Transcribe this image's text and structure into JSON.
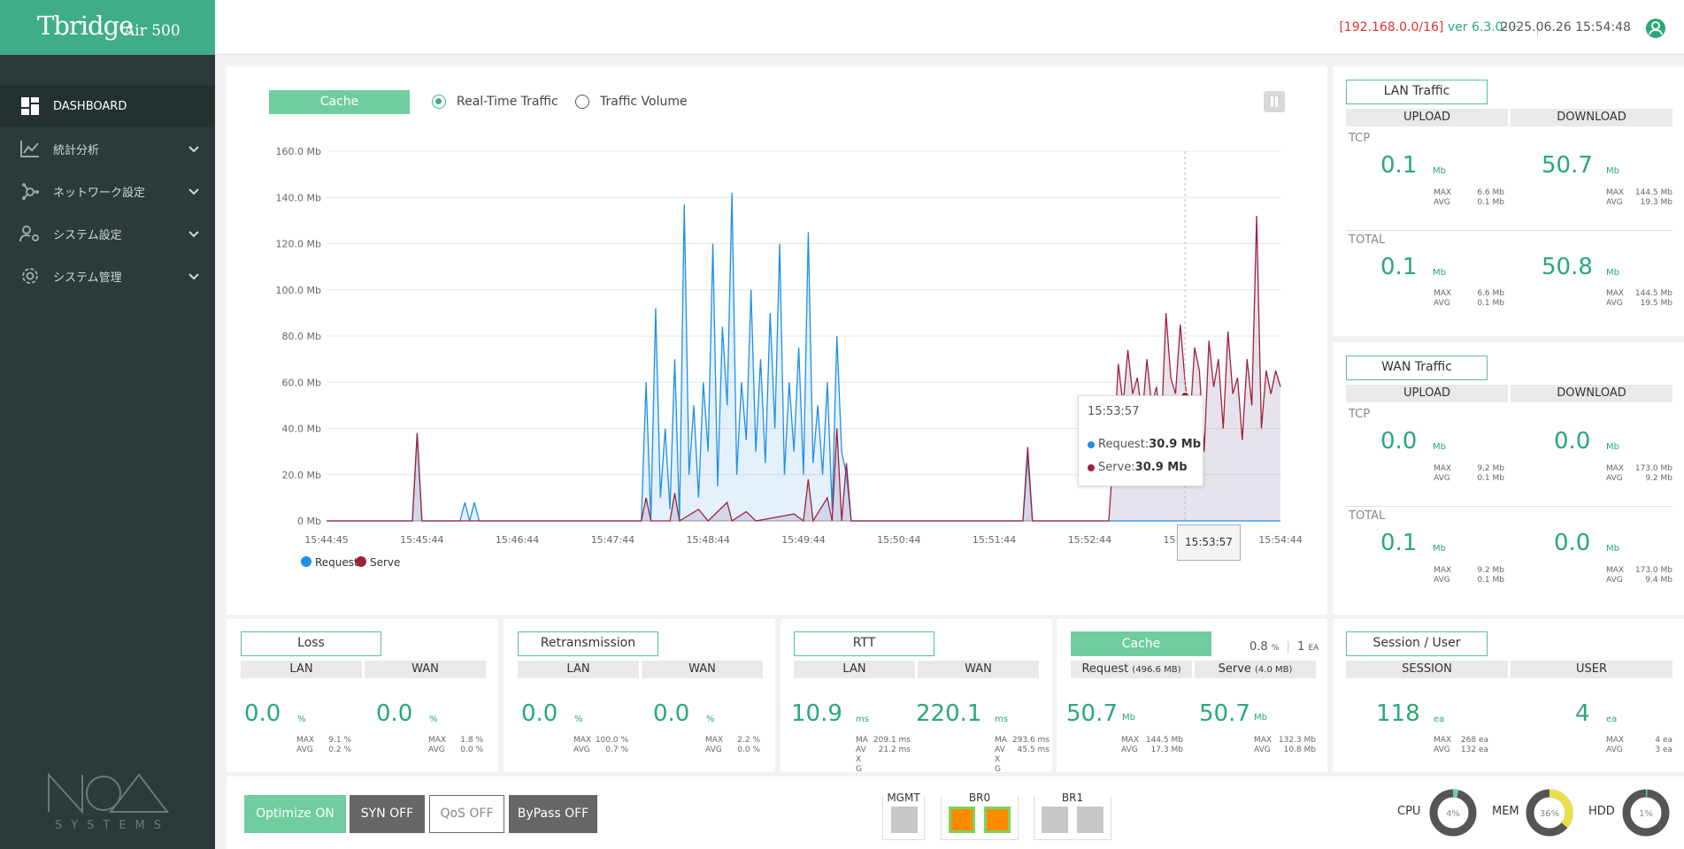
{
  "app": {
    "logo_main": "Tbridge",
    "logo_sub": "Air 500",
    "brand_sub": "SYSTEMS"
  },
  "topbar": {
    "ip": "[192.168.0.0/16]",
    "version": "ver 6.3.0-···",
    "datetime": "2025.06.26 15:54:48"
  },
  "sidebar": {
    "items": [
      {
        "label": "DASHBOARD",
        "icon": "dashboard-icon",
        "active": true
      },
      {
        "label": "統計分析",
        "icon": "chart-icon"
      },
      {
        "label": "ネットワーク設定",
        "icon": "network-icon"
      },
      {
        "label": "システム設定",
        "icon": "user-gear-icon"
      },
      {
        "label": "システム管理",
        "icon": "gear-icon"
      }
    ]
  },
  "traffic": {
    "cache_btn": "Cache",
    "radio_realtime": "Real-Time Traffic",
    "radio_volume": "Traffic Volume"
  },
  "tooltip": {
    "time": "15:53:57",
    "request_label": "Request:",
    "request_value": "30.9 Mb",
    "serve_label": "Serve:",
    "serve_value": "30.9 Mb",
    "x_label": "15:53:57"
  },
  "chart_data": {
    "type": "line",
    "title": "",
    "ylim": [
      0,
      160
    ],
    "y_ticks": [
      "160.0 Mb",
      "140.0 Mb",
      "120.0 Mb",
      "100.0 Mb",
      "80.0 Mb",
      "60.0 Mb",
      "40.0 Mb",
      "20.0 Mb",
      "0 Mb"
    ],
    "x_ticks": [
      "15:44:45",
      "15:45:44",
      "15:46:44",
      "15:47:44",
      "15:48:44",
      "15:49:44",
      "15:50:44",
      "15:51:44",
      "15:52:44",
      "15:53:57",
      "15:54:44"
    ],
    "series": [
      {
        "name": "Request",
        "color": "#1e8fe6",
        "points": [
          [
            0,
            0
          ],
          [
            0.09,
            0
          ],
          [
            0.095,
            38
          ],
          [
            0.1,
            0
          ],
          [
            0.14,
            0
          ],
          [
            0.145,
            8
          ],
          [
            0.15,
            0
          ],
          [
            0.155,
            8
          ],
          [
            0.16,
            0
          ],
          [
            0.33,
            0
          ],
          [
            0.335,
            60
          ],
          [
            0.34,
            0
          ],
          [
            0.345,
            92
          ],
          [
            0.35,
            10
          ],
          [
            0.355,
            40
          ],
          [
            0.36,
            5
          ],
          [
            0.365,
            70
          ],
          [
            0.37,
            0
          ],
          [
            0.375,
            137
          ],
          [
            0.38,
            20
          ],
          [
            0.385,
            50
          ],
          [
            0.39,
            10
          ],
          [
            0.395,
            60
          ],
          [
            0.4,
            30
          ],
          [
            0.405,
            120
          ],
          [
            0.41,
            15
          ],
          [
            0.415,
            84
          ],
          [
            0.42,
            50
          ],
          [
            0.425,
            142
          ],
          [
            0.43,
            20
          ],
          [
            0.435,
            60
          ],
          [
            0.44,
            35
          ],
          [
            0.445,
            100
          ],
          [
            0.45,
            30
          ],
          [
            0.455,
            70
          ],
          [
            0.46,
            25
          ],
          [
            0.465,
            90
          ],
          [
            0.47,
            40
          ],
          [
            0.475,
            120
          ],
          [
            0.48,
            20
          ],
          [
            0.485,
            60
          ],
          [
            0.49,
            30
          ],
          [
            0.495,
            75
          ],
          [
            0.5,
            20
          ],
          [
            0.505,
            125
          ],
          [
            0.51,
            25
          ],
          [
            0.515,
            50
          ],
          [
            0.52,
            20
          ],
          [
            0.525,
            60
          ],
          [
            0.53,
            5
          ],
          [
            0.535,
            80
          ],
          [
            0.54,
            30
          ],
          [
            0.545,
            20
          ],
          [
            0.55,
            0
          ],
          [
            0.73,
            0
          ],
          [
            0.735,
            28
          ],
          [
            0.74,
            0
          ],
          [
            0.82,
            0
          ],
          [
            0.825,
            0
          ],
          [
            1,
            0
          ]
        ]
      },
      {
        "name": "Serve",
        "color": "#a0213c",
        "points": [
          [
            0,
            0
          ],
          [
            0.09,
            0
          ],
          [
            0.095,
            38
          ],
          [
            0.1,
            0
          ],
          [
            0.33,
            0
          ],
          [
            0.335,
            10
          ],
          [
            0.34,
            0
          ],
          [
            0.36,
            0
          ],
          [
            0.365,
            12
          ],
          [
            0.37,
            0
          ],
          [
            0.39,
            5
          ],
          [
            0.4,
            0
          ],
          [
            0.42,
            8
          ],
          [
            0.425,
            0
          ],
          [
            0.44,
            4
          ],
          [
            0.45,
            0
          ],
          [
            0.49,
            3
          ],
          [
            0.5,
            0
          ],
          [
            0.505,
            18
          ],
          [
            0.51,
            0
          ],
          [
            0.525,
            10
          ],
          [
            0.53,
            0
          ],
          [
            0.535,
            40
          ],
          [
            0.54,
            0
          ],
          [
            0.545,
            25
          ],
          [
            0.55,
            0
          ],
          [
            0.73,
            0
          ],
          [
            0.735,
            32
          ],
          [
            0.74,
            0
          ],
          [
            0.82,
            0
          ],
          [
            0.825,
            30
          ],
          [
            0.83,
            68
          ],
          [
            0.835,
            50
          ],
          [
            0.84,
            74
          ],
          [
            0.845,
            55
          ],
          [
            0.85,
            62
          ],
          [
            0.855,
            45
          ],
          [
            0.86,
            70
          ],
          [
            0.865,
            50
          ],
          [
            0.87,
            58
          ],
          [
            0.875,
            40
          ],
          [
            0.88,
            90
          ],
          [
            0.885,
            62
          ],
          [
            0.89,
            55
          ],
          [
            0.895,
            85
          ],
          [
            0.9,
            60
          ],
          [
            0.905,
            42
          ],
          [
            0.91,
            75
          ],
          [
            0.915,
            65
          ],
          [
            0.92,
            30
          ],
          [
            0.925,
            78
          ],
          [
            0.93,
            58
          ],
          [
            0.935,
            70
          ],
          [
            0.94,
            40
          ],
          [
            0.945,
            82
          ],
          [
            0.95,
            55
          ],
          [
            0.955,
            62
          ],
          [
            0.96,
            35
          ],
          [
            0.965,
            70
          ],
          [
            0.97,
            50
          ],
          [
            0.975,
            132
          ],
          [
            0.98,
            40
          ],
          [
            0.985,
            65
          ],
          [
            0.99,
            55
          ],
          [
            0.995,
            65
          ],
          [
            1,
            58
          ]
        ]
      }
    ],
    "legend": [
      {
        "name": "Request",
        "color": "#1e8fe6"
      },
      {
        "name": "Serve",
        "color": "#a0213c"
      }
    ],
    "legend_position": "bottom-left",
    "grid": true
  },
  "lan_traffic": {
    "title": "LAN Traffic",
    "upload": "UPLOAD",
    "download": "DOWNLOAD",
    "tcp_label": "TCP",
    "total_label": "TOTAL",
    "tcp_up": "0.1",
    "tcp_up_max": "6.6 Mb",
    "tcp_up_avg": "0.1 Mb",
    "tcp_down": "50.7",
    "tcp_down_max": "144.5 Mb",
    "tcp_down_avg": "19.3 Mb",
    "total_up": "0.1",
    "total_up_max": "6.6 Mb",
    "total_up_avg": "0.1 Mb",
    "total_down": "50.8",
    "total_down_max": "144.5 Mb",
    "total_down_avg": "19.5 Mb"
  },
  "wan_traffic": {
    "title": "WAN Traffic",
    "upload": "UPLOAD",
    "download": "DOWNLOAD",
    "tcp_label": "TCP",
    "total_label": "TOTAL",
    "tcp_up": "0.0",
    "tcp_up_max": "9.2 Mb",
    "tcp_up_avg": "0.1 Mb",
    "tcp_down": "0.0",
    "tcp_down_max": "173.0 Mb",
    "tcp_down_avg": "9.2 Mb",
    "total_up": "0.1",
    "total_up_max": "9.2 Mb",
    "total_up_avg": "0.1 Mb",
    "total_down": "0.0",
    "total_down_max": "173.0 Mb",
    "total_down_avg": "9.4 Mb"
  },
  "loss": {
    "title": "Loss",
    "lan": "LAN",
    "wan": "WAN",
    "lan_value": "0.0",
    "lan_unit": "%",
    "lan_max": "9.1 %",
    "lan_avg": "0.2 %",
    "wan_value": "0.0",
    "wan_unit": "%",
    "wan_max": "1.8 %",
    "wan_avg": "0.0 %"
  },
  "retrans": {
    "title": "Retransmission",
    "lan": "LAN",
    "wan": "WAN",
    "lan_value": "0.0",
    "lan_unit": "%",
    "lan_max": "100.0 %",
    "lan_avg": "0.7 %",
    "wan_value": "0.0",
    "wan_unit": "%",
    "wan_max": "2.2 %",
    "wan_avg": "0.0 %"
  },
  "rtt": {
    "title": "RTT",
    "lan": "LAN",
    "wan": "WAN",
    "lan_value": "10.9",
    "lan_unit": "ms",
    "lan_max": "209.1 ms",
    "lan_avg": "21.2 ms",
    "wan_value": "220.1",
    "wan_unit": "ms",
    "wan_max": "293.6 ms",
    "wan_avg": "45.5 ms"
  },
  "cache": {
    "title": "Cache",
    "hit": "0.8",
    "hit_unit": "%",
    "count": "1",
    "count_unit": "EA",
    "req_label": "Request",
    "req_total": "(496.6 MB)",
    "serve_label": "Serve",
    "serve_total": "(4.0 MB)",
    "req_value": "50.7",
    "req_unit": "Mb",
    "req_max": "144.5 Mb",
    "req_avg": "17.3 Mb",
    "serve_value": "50.7",
    "serve_unit": "Mb",
    "serve_max": "132.3 Mb",
    "serve_avg": "10.8 Mb"
  },
  "session": {
    "title": "Session / User",
    "session": "SESSION",
    "user": "USER",
    "session_value": "118",
    "session_unit": "ea",
    "session_max": "268 ea",
    "session_avg": "132 ea",
    "user_value": "4",
    "user_unit": "ea",
    "user_max": "4 ea",
    "user_avg": "3 ea"
  },
  "labels": {
    "max": "MAX",
    "avg": "AVG",
    "ma": "MA",
    "av": "AV",
    "x": "X",
    "g": "G"
  },
  "controls": {
    "optimize": "Optimize ON",
    "syn": "SYN OFF",
    "qos": "QoS OFF",
    "bypass": "ByPass OFF"
  },
  "ports": {
    "mgmt": "MGMT",
    "br0": "BR0",
    "br1": "BR1"
  },
  "gauges": {
    "cpu_label": "CPU",
    "cpu_pct": 4,
    "cpu_text": "4%",
    "mem_label": "MEM",
    "mem_pct": 36,
    "mem_text": "36%",
    "hdd_label": "HDD",
    "hdd_pct": 1,
    "hdd_text": "1%"
  }
}
